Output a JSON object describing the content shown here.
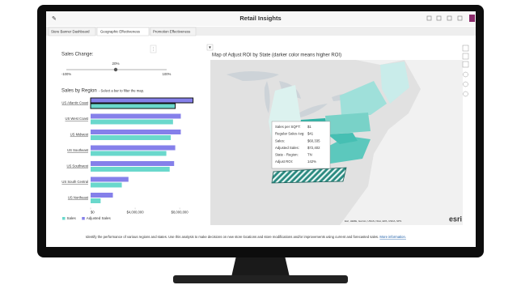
{
  "header": {
    "title": "Retail Insights"
  },
  "tabs": [
    "Store Banner Dashboard",
    "Geographic Effectiveness",
    "Promotion Effectiveness"
  ],
  "slider": {
    "label": "Sales Change:",
    "value_label": "20%",
    "min_label": "-100%",
    "max_label": "100%"
  },
  "chart_data": {
    "type": "bar",
    "title": "Sales by Region",
    "subtitle": "- Select a bar to filter the map.",
    "categories": [
      "US Atlantic Coast",
      "US West Coast",
      "US Midwest",
      "US Southeast",
      "US Southwest",
      "US South Central",
      "US Northeast"
    ],
    "series": [
      {
        "name": "Sales",
        "color": "#6ad8cc",
        "values": [
          7600000,
          7400000,
          7200000,
          6800000,
          7100000,
          2800000,
          900000
        ]
      },
      {
        "name": "Adjusted Sales",
        "color": "#8580ea",
        "values": [
          9200000,
          8100000,
          8100000,
          7600000,
          7500000,
          3400000,
          2000000
        ]
      }
    ],
    "xlim": [
      0,
      9300000
    ],
    "xticks": [
      {
        "value": 0,
        "label": "$0"
      },
      {
        "value": 4000000,
        "label": "$4,000,000"
      },
      {
        "value": 8000000,
        "label": "$8,000,000"
      }
    ]
  },
  "map": {
    "title": "Map of Adjust ROI by State (darker color means higher ROI)",
    "tooltip": [
      {
        "label": "Sales per SQFT:",
        "value": "$1"
      },
      {
        "label": "Regular Sales Avg:",
        "value": "$41"
      },
      {
        "label": "Sales:",
        "value": "$60,335"
      },
      {
        "label": "Adjusted Sales:",
        "value": "$72,402"
      },
      {
        "label": "State - Region:",
        "value": "TN"
      },
      {
        "label": "Adjust ROI:",
        "value": "142%"
      }
    ],
    "logo": "esri"
  },
  "footer": {
    "text": "Identify the performance of various regions and states. Use this analysis to make decisions on new store locations and store modifications and/or improvements using current and forecasted sales.",
    "link": "More information."
  }
}
